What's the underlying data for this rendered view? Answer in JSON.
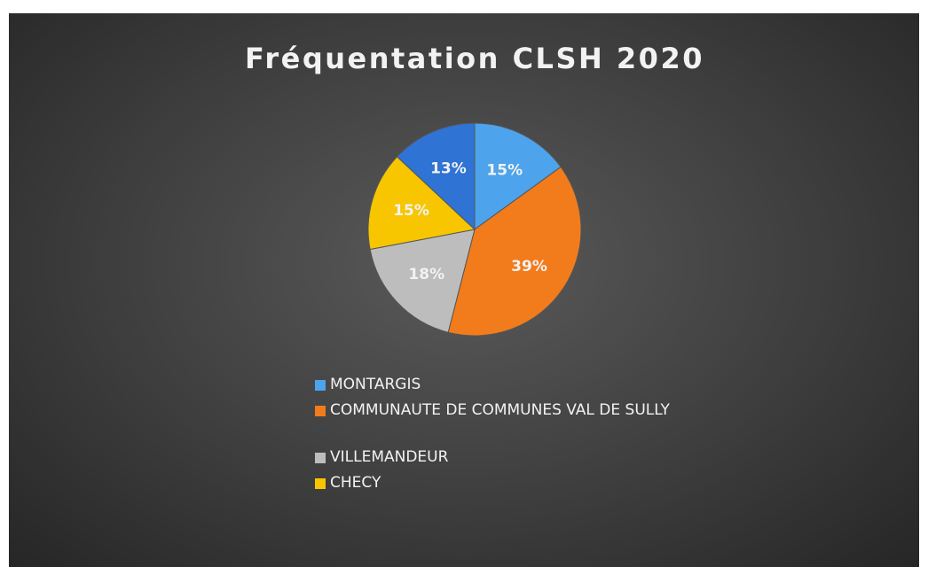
{
  "chart_data": {
    "type": "pie",
    "title": "Fréquentation CLSH 2020",
    "categories": [
      "MONTARGIS",
      "COMMUNAUTE DE COMMUNES VAL DE SULLY",
      "VILLEMANDEUR",
      "CHECY",
      null
    ],
    "values": [
      15,
      39,
      18,
      15,
      13
    ],
    "value_labels": [
      "15%",
      "39%",
      "18%",
      "15%",
      "13%"
    ],
    "colors": [
      "#4da3ec",
      "#f27c1c",
      "#bdbdbd",
      "#f7c600",
      "#2f73d4"
    ],
    "legend": "bottom"
  }
}
